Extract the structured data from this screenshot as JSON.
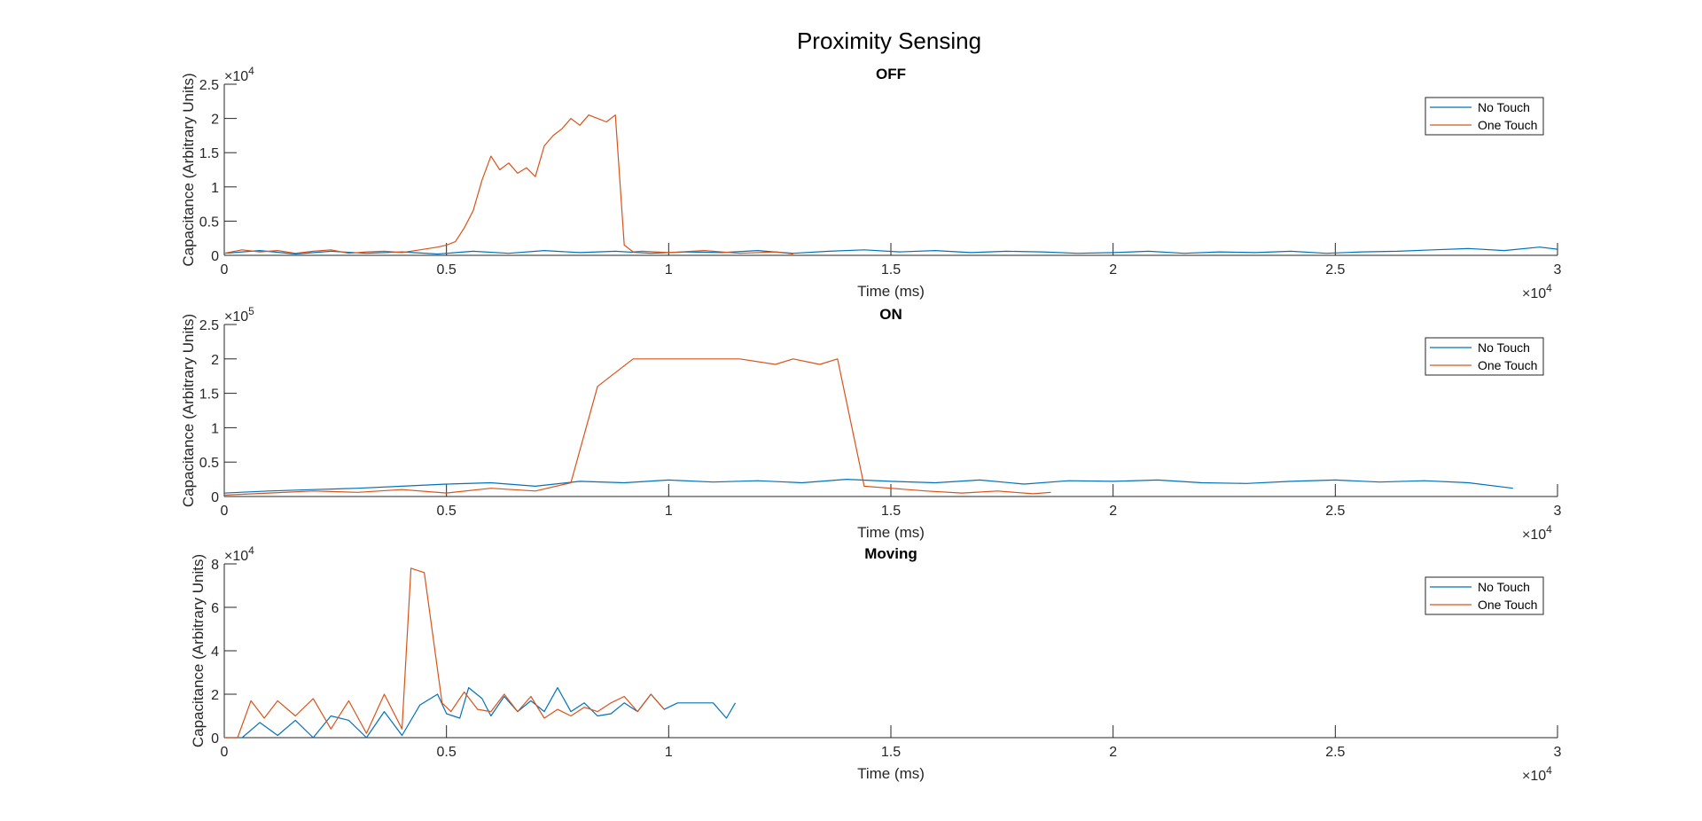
{
  "figure": {
    "title": "Proximity Sensing",
    "colors": {
      "no_touch": "#0072BD",
      "one_touch": "#D95319",
      "axis": "#262626"
    }
  },
  "chart_data": [
    {
      "type": "line",
      "title": "OFF",
      "xlabel": "Time (ms)",
      "ylabel": "Capacitance (Arbitrary Units)",
      "xlim": [
        0,
        30000
      ],
      "ylim": [
        0,
        25000
      ],
      "xticks": [
        0,
        5000,
        10000,
        15000,
        20000,
        25000,
        30000
      ],
      "xtick_labels": [
        "0",
        "0.5",
        "1",
        "1.5",
        "2",
        "2.5",
        "3"
      ],
      "yticks": [
        0,
        5000,
        10000,
        15000,
        20000,
        25000
      ],
      "ytick_labels": [
        "0",
        "0.5",
        "1",
        "1.5",
        "2",
        "2.5"
      ],
      "x_exponent": "4",
      "y_exponent": "4",
      "legend": "top-right",
      "series": [
        {
          "name": "No Touch",
          "color": "#0072BD",
          "x": [
            0,
            800,
            1600,
            2400,
            3200,
            4000,
            4800,
            5600,
            6400,
            7200,
            8000,
            8800,
            9600,
            10400,
            11200,
            12000,
            12800,
            13600,
            14400,
            15200,
            16000,
            16800,
            17600,
            18400,
            19200,
            20000,
            20800,
            21600,
            22400,
            23200,
            24000,
            24800,
            25600,
            26400,
            27200,
            28000,
            28800,
            29600,
            30000
          ],
          "y": [
            300,
            700,
            200,
            600,
            300,
            500,
            200,
            600,
            300,
            700,
            400,
            600,
            300,
            500,
            400,
            700,
            300,
            600,
            800,
            500,
            700,
            400,
            600,
            500,
            300,
            400,
            600,
            300,
            500,
            400,
            600,
            300,
            500,
            600,
            800,
            1000,
            700,
            1200,
            900
          ]
        },
        {
          "name": "One Touch",
          "color": "#D95319",
          "x": [
            0,
            400,
            800,
            1200,
            1600,
            2000,
            2400,
            2800,
            3200,
            3600,
            4000,
            4400,
            4800,
            5000,
            5200,
            5400,
            5600,
            5800,
            6000,
            6200,
            6400,
            6600,
            6800,
            7000,
            7200,
            7400,
            7600,
            7800,
            8000,
            8200,
            8400,
            8600,
            8800,
            9000,
            9200,
            9400,
            10000,
            10800,
            11600,
            12400,
            12800
          ],
          "y": [
            300,
            800,
            500,
            700,
            300,
            600,
            800,
            300,
            500,
            600,
            400,
            800,
            1200,
            1500,
            2000,
            4000,
            6500,
            11000,
            14500,
            12500,
            13500,
            12000,
            12800,
            11500,
            16000,
            17500,
            18500,
            20000,
            19000,
            20500,
            20000,
            19500,
            20500,
            1500,
            500,
            600,
            400,
            700,
            300,
            500,
            200
          ]
        }
      ]
    },
    {
      "type": "line",
      "title": "ON",
      "xlabel": "Time (ms)",
      "ylabel": "Capacitance (Arbitrary Units)",
      "xlim": [
        0,
        30000
      ],
      "ylim": [
        0,
        250000
      ],
      "xticks": [
        0,
        5000,
        10000,
        15000,
        20000,
        25000,
        30000
      ],
      "xtick_labels": [
        "0",
        "0.5",
        "1",
        "1.5",
        "2",
        "2.5",
        "3"
      ],
      "yticks": [
        0,
        50000,
        100000,
        150000,
        200000,
        250000
      ],
      "ytick_labels": [
        "0",
        "0.5",
        "1",
        "1.5",
        "2",
        "2.5"
      ],
      "x_exponent": "4",
      "y_exponent": "5",
      "legend": "top-right",
      "series": [
        {
          "name": "No Touch",
          "color": "#0072BD",
          "x": [
            0,
            1000,
            2000,
            3000,
            4000,
            5000,
            6000,
            7000,
            8000,
            9000,
            10000,
            11000,
            12000,
            13000,
            14000,
            15000,
            16000,
            17000,
            18000,
            19000,
            20000,
            21000,
            22000,
            23000,
            24000,
            25000,
            26000,
            27000,
            28000,
            29000
          ],
          "y": [
            5000,
            8000,
            10000,
            12000,
            15000,
            18000,
            20000,
            15000,
            22000,
            20000,
            24000,
            21000,
            23000,
            20000,
            25000,
            22000,
            20000,
            24000,
            18000,
            23000,
            22000,
            24000,
            20000,
            19000,
            22000,
            24000,
            21000,
            23000,
            20000,
            12000
          ]
        },
        {
          "name": "One Touch",
          "color": "#D95319",
          "x": [
            0,
            1000,
            2000,
            3000,
            4000,
            5000,
            6000,
            7000,
            7800,
            8400,
            9200,
            10400,
            11600,
            12400,
            12800,
            13400,
            13800,
            14400,
            15000,
            15800,
            16600,
            17400,
            18200,
            18600
          ],
          "y": [
            2000,
            5000,
            8000,
            6000,
            10000,
            5000,
            12000,
            8000,
            20000,
            160000,
            200000,
            200000,
            200000,
            192000,
            200000,
            192000,
            200000,
            15000,
            12000,
            8000,
            5000,
            8000,
            4000,
            6000
          ]
        }
      ]
    },
    {
      "type": "line",
      "title": "Moving",
      "xlabel": "Time (ms)",
      "ylabel": "Capacitance (Arbitrary Units)",
      "xlim": [
        0,
        30000
      ],
      "ylim": [
        0,
        80000
      ],
      "xticks": [
        0,
        5000,
        10000,
        15000,
        20000,
        25000,
        30000
      ],
      "xtick_labels": [
        "0",
        "0.5",
        "1",
        "1.5",
        "2",
        "2.5",
        "3"
      ],
      "yticks": [
        0,
        20000,
        40000,
        60000,
        80000
      ],
      "ytick_labels": [
        "0",
        "2",
        "4",
        "6",
        "8"
      ],
      "x_exponent": "4",
      "y_exponent": "4",
      "legend": "top-right",
      "series": [
        {
          "name": "No Touch",
          "color": "#0072BD",
          "x": [
            0,
            400,
            800,
            1200,
            1600,
            2000,
            2400,
            2800,
            3200,
            3600,
            4000,
            4400,
            4800,
            5000,
            5300,
            5500,
            5800,
            6000,
            6300,
            6600,
            6900,
            7200,
            7500,
            7800,
            8100,
            8400,
            8700,
            9000,
            9300,
            9600,
            9900,
            10200,
            10600,
            11000,
            11300,
            11500
          ],
          "y": [
            0,
            0,
            7000,
            1000,
            8000,
            0,
            10000,
            8000,
            0,
            12000,
            1000,
            15000,
            20000,
            11000,
            9000,
            23000,
            18000,
            10000,
            19000,
            12000,
            17000,
            12000,
            23000,
            12000,
            16000,
            10000,
            11000,
            16000,
            12000,
            20000,
            13000,
            16000,
            16000,
            16000,
            9000,
            16000
          ]
        },
        {
          "name": "One Touch",
          "color": "#D95319",
          "x": [
            0,
            300,
            600,
            900,
            1200,
            1600,
            2000,
            2400,
            2800,
            3200,
            3600,
            4000,
            4200,
            4500,
            4900,
            5100,
            5400,
            5700,
            6000,
            6300,
            6600,
            6900,
            7200,
            7500,
            7800,
            8100,
            8400,
            8700,
            9000,
            9300,
            9600,
            9900
          ],
          "y": [
            0,
            0,
            17000,
            9000,
            17000,
            10000,
            18000,
            4000,
            17000,
            2000,
            20000,
            4000,
            78000,
            76000,
            16000,
            12000,
            21000,
            13000,
            12000,
            20000,
            12000,
            19000,
            9000,
            13000,
            10000,
            14000,
            12000,
            16000,
            19000,
            12000,
            20000,
            13000
          ]
        }
      ]
    }
  ]
}
